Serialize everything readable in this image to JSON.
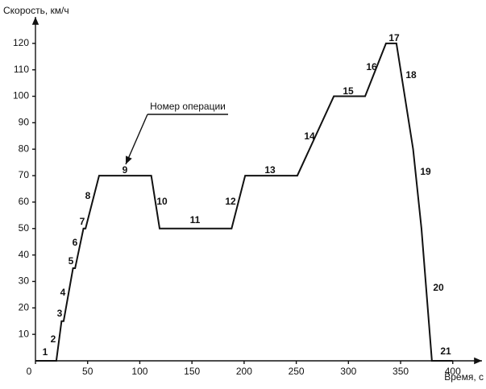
{
  "chart_data": {
    "type": "line",
    "y_label": "Скорость, км/ч",
    "x_label": "Время, с",
    "annotation": "Номер операции",
    "x": [
      0,
      20,
      25,
      27,
      36,
      38,
      46,
      48,
      61,
      111,
      119,
      188,
      201,
      251,
      286,
      316,
      336,
      346,
      362,
      370,
      380,
      400
    ],
    "values": [
      0,
      0,
      15,
      15,
      35,
      35,
      50,
      50,
      70,
      70,
      50,
      50,
      70,
      70,
      100,
      100,
      120,
      120,
      80,
      50,
      0,
      0
    ],
    "color": "#111111",
    "op_labels": [
      "1",
      "2",
      "3",
      "4",
      "5",
      "6",
      "7",
      "8",
      "9",
      "10",
      "11",
      "12",
      "13",
      "14",
      "15",
      "16",
      "17",
      "18",
      "19",
      "20",
      "21"
    ],
    "xlim": [
      0,
      428
    ],
    "ylim": [
      0,
      130
    ],
    "xticks": [
      0,
      50,
      100,
      150,
      200,
      250,
      300,
      350,
      400
    ],
    "yticks": [
      10,
      20,
      30,
      40,
      50,
      60,
      70,
      80,
      90,
      100,
      110,
      120
    ],
    "grid": false
  }
}
